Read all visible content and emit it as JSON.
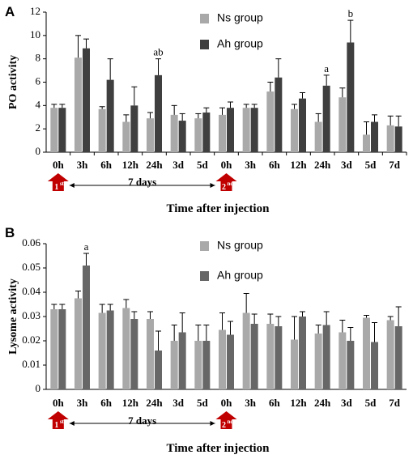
{
  "colors": {
    "ns": "#a9a9a9",
    "ah": "#3f3f3f",
    "ah_b": "#676767",
    "marker": "#c00000"
  },
  "shared": {
    "categories": [
      "0h",
      "3h",
      "6h",
      "12h",
      "24h",
      "3d",
      "5d",
      "0h",
      "3h",
      "6h",
      "12h",
      "24h",
      "3d",
      "5d",
      "7d"
    ],
    "xlabel": "Time after injection",
    "injection_markers": [
      "1",
      "st",
      "2",
      "nd"
    ],
    "days_label": "7 days"
  },
  "chart_data": [
    {
      "type": "bar",
      "panel": "A",
      "ylabel": "PO activity",
      "ylim": [
        0,
        12
      ],
      "yticks": [
        "0",
        "2",
        "4",
        "6",
        "8",
        "10",
        "12"
      ],
      "legend": [
        "Ns group",
        "Ah group"
      ],
      "series": [
        {
          "name": "Ns group",
          "values": [
            3.8,
            8.1,
            3.7,
            2.6,
            2.9,
            3.2,
            2.9,
            3.2,
            3.8,
            5.2,
            3.7,
            2.6,
            4.7,
            1.5,
            2.3
          ],
          "errors": [
            0.3,
            1.9,
            0.2,
            0.6,
            0.5,
            0.8,
            0.4,
            0.6,
            0.3,
            0.8,
            0.4,
            0.7,
            0.8,
            1.1,
            0.8
          ]
        },
        {
          "name": "Ah group",
          "values": [
            3.8,
            8.9,
            6.2,
            4.0,
            6.6,
            2.7,
            3.4,
            3.8,
            3.8,
            6.4,
            4.6,
            5.7,
            9.4,
            2.6,
            2.2
          ],
          "errors": [
            0.3,
            0.8,
            1.8,
            1.6,
            1.4,
            0.6,
            0.4,
            0.5,
            0.3,
            1.6,
            0.5,
            0.9,
            1.9,
            0.6,
            0.9
          ]
        }
      ],
      "annotations": [
        {
          "index": 4,
          "series": 1,
          "text": "ab"
        },
        {
          "index": 11,
          "series": 1,
          "text": "a"
        },
        {
          "index": 12,
          "series": 1,
          "text": "b"
        }
      ]
    },
    {
      "type": "bar",
      "panel": "B",
      "ylabel": "Lysome activity",
      "ylim": [
        0,
        0.06
      ],
      "yticks": [
        "0",
        "0.01",
        "0.02",
        "0.03",
        "0.04",
        "0.05",
        "0.06"
      ],
      "legend": [
        "Ns group",
        "Ah group"
      ],
      "series": [
        {
          "name": "Ns group",
          "values": [
            0.033,
            0.0375,
            0.0315,
            0.0335,
            0.029,
            0.02,
            0.02,
            0.0245,
            0.0315,
            0.027,
            0.0205,
            0.023,
            0.0235,
            0.0295,
            0.0285
          ],
          "errors": [
            0.002,
            0.003,
            0.0035,
            0.0035,
            0.003,
            0.0065,
            0.0065,
            0.007,
            0.008,
            0.004,
            0.0095,
            0.0035,
            0.005,
            0.001,
            0.0015
          ]
        },
        {
          "name": "Ah group",
          "values": [
            0.033,
            0.051,
            0.0325,
            0.029,
            0.016,
            0.0235,
            0.02,
            0.0225,
            0.027,
            0.026,
            0.03,
            0.0265,
            0.02,
            0.0195,
            0.026
          ],
          "errors": [
            0.002,
            0.005,
            0.0025,
            0.003,
            0.008,
            0.008,
            0.0065,
            0.0055,
            0.004,
            0.004,
            0.002,
            0.0055,
            0.0055,
            0.008,
            0.008
          ]
        }
      ],
      "annotations": [
        {
          "index": 1,
          "series": 1,
          "text": "a"
        }
      ]
    }
  ]
}
